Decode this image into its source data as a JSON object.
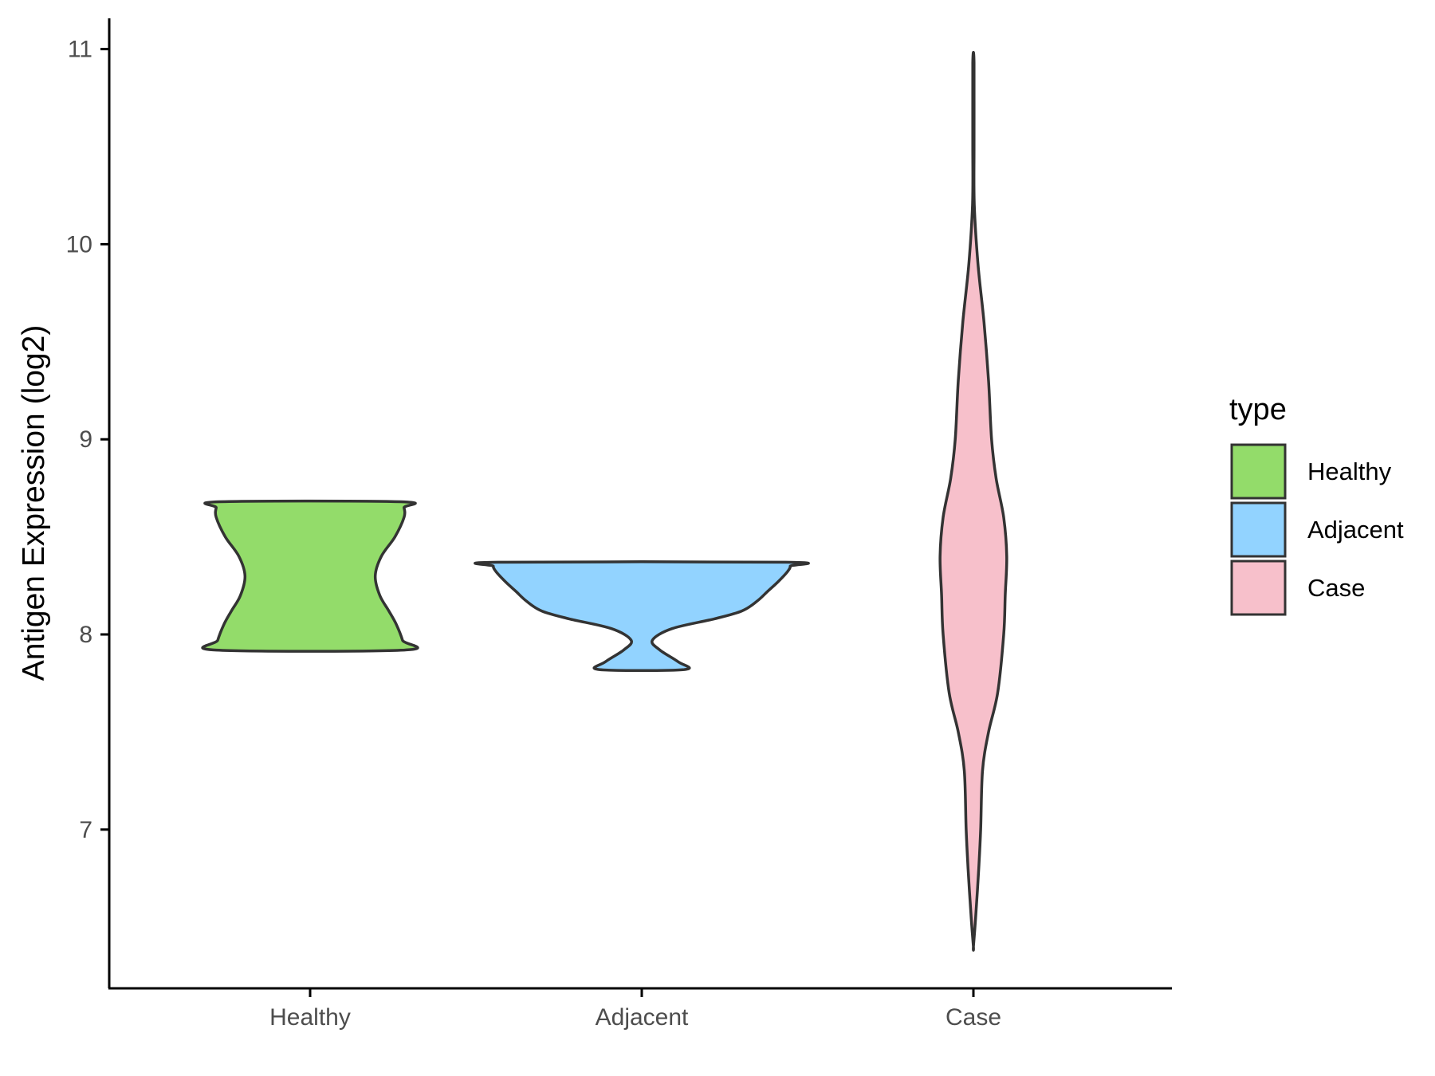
{
  "chart_data": {
    "type": "violin",
    "title": "",
    "xlabel": "",
    "ylabel": "Antigen Expression (log2)",
    "ylim": [
      6.2,
      11.15
    ],
    "yticks": [
      7,
      8,
      9,
      10,
      11
    ],
    "categories": [
      "Healthy",
      "Adjacent",
      "Case"
    ],
    "grid": false,
    "legend": {
      "title": "type",
      "position": "right",
      "entries": [
        "Healthy",
        "Adjacent",
        "Case"
      ]
    },
    "series": [
      {
        "name": "Healthy",
        "color": "#93dc6a",
        "min": 7.92,
        "max": 8.68,
        "profile": [
          [
            7.92,
            0.62
          ],
          [
            7.97,
            0.61
          ],
          [
            8.05,
            0.57
          ],
          [
            8.12,
            0.52
          ],
          [
            8.2,
            0.46
          ],
          [
            8.3,
            0.43
          ],
          [
            8.4,
            0.47
          ],
          [
            8.5,
            0.56
          ],
          [
            8.6,
            0.62
          ],
          [
            8.65,
            0.62
          ],
          [
            8.68,
            0.6
          ]
        ]
      },
      {
        "name": "Adjacent",
        "color": "#92d3ff",
        "min": 7.82,
        "max": 8.37,
        "profile": [
          [
            7.82,
            0.28
          ],
          [
            7.86,
            0.24
          ],
          [
            7.92,
            0.12
          ],
          [
            7.97,
            0.07
          ],
          [
            8.03,
            0.2
          ],
          [
            8.08,
            0.48
          ],
          [
            8.12,
            0.66
          ],
          [
            8.17,
            0.76
          ],
          [
            8.22,
            0.83
          ],
          [
            8.27,
            0.9
          ],
          [
            8.32,
            0.96
          ],
          [
            8.35,
            0.98
          ],
          [
            8.37,
            0.95
          ]
        ]
      },
      {
        "name": "Case",
        "color": "#f7c0cb",
        "min": 6.4,
        "max": 10.93,
        "profile": [
          [
            6.4,
            0.0
          ],
          [
            6.55,
            0.015
          ],
          [
            6.8,
            0.035
          ],
          [
            7.0,
            0.048
          ],
          [
            7.3,
            0.06
          ],
          [
            7.5,
            0.1
          ],
          [
            7.7,
            0.16
          ],
          [
            8.0,
            0.2
          ],
          [
            8.2,
            0.21
          ],
          [
            8.4,
            0.22
          ],
          [
            8.6,
            0.2
          ],
          [
            8.8,
            0.15
          ],
          [
            9.0,
            0.12
          ],
          [
            9.3,
            0.1
          ],
          [
            9.6,
            0.07
          ],
          [
            9.9,
            0.03
          ],
          [
            10.2,
            0.006
          ],
          [
            10.5,
            0.004
          ],
          [
            10.93,
            0.004
          ]
        ]
      }
    ]
  }
}
